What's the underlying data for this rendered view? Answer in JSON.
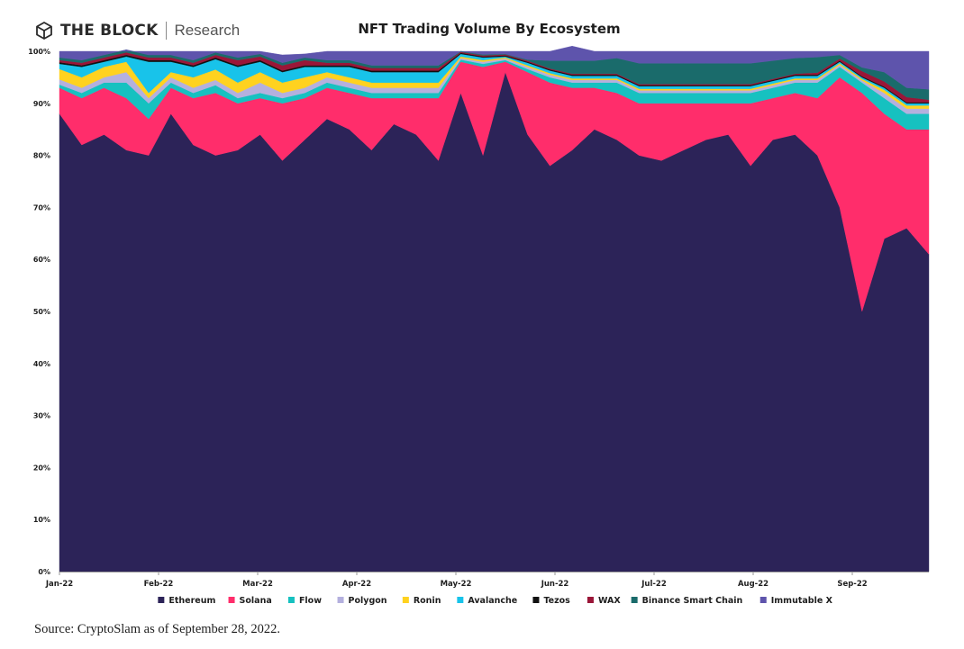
{
  "header": {
    "brand_name": "THE BLOCK",
    "brand_sub": "Research",
    "logo_icon": "cube-icon"
  },
  "source_note": "Source: CryptoSlam as of September 28, 2022.",
  "chart_data": {
    "type": "area",
    "stacked": true,
    "percent": true,
    "title": "NFT Trading Volume By Ecosystem",
    "xlabel": "",
    "ylabel": "",
    "ylim": [
      0,
      100
    ],
    "yticks": [
      "0%",
      "10%",
      "20%",
      "30%",
      "40%",
      "50%",
      "60%",
      "70%",
      "80%",
      "90%",
      "100%"
    ],
    "xticks": [
      "Jan-22",
      "Feb-22",
      "Mar-22",
      "Apr-22",
      "May-22",
      "Jun-22",
      "Jul-22",
      "Aug-22",
      "Sep-22"
    ],
    "x": [
      "Jan-01",
      "Jan-08",
      "Jan-15",
      "Jan-22",
      "Jan-29",
      "Feb-05",
      "Feb-12",
      "Feb-19",
      "Feb-26",
      "Mar-05",
      "Mar-12",
      "Mar-19",
      "Mar-26",
      "Apr-02",
      "Apr-09",
      "Apr-16",
      "Apr-23",
      "Apr-30",
      "May-07",
      "May-14",
      "May-21",
      "May-28",
      "Jun-04",
      "Jun-11",
      "Jun-18",
      "Jun-25",
      "Jul-02",
      "Jul-09",
      "Jul-16",
      "Jul-23",
      "Jul-30",
      "Aug-06",
      "Aug-13",
      "Aug-20",
      "Aug-27",
      "Sep-03",
      "Sep-10",
      "Sep-17",
      "Sep-24",
      "Sep-28"
    ],
    "grid": false,
    "legend_position": "bottom",
    "series": [
      {
        "name": "Ethereum",
        "color": "#2c2358",
        "values": [
          88,
          82,
          84,
          81,
          80,
          88,
          82,
          80,
          81,
          84,
          79,
          83,
          87,
          85,
          81,
          86,
          84,
          79,
          92,
          80,
          96,
          84,
          78,
          81,
          85,
          83,
          80,
          79,
          81,
          83,
          84,
          78,
          83,
          84,
          80,
          70,
          50,
          64,
          66,
          61
        ]
      },
      {
        "name": "Solana",
        "color": "#ff2d6b",
        "values": [
          5,
          9,
          9,
          10,
          7,
          5,
          9,
          12,
          9,
          7,
          11,
          8,
          6,
          7,
          10,
          5,
          7,
          12,
          6,
          17,
          2,
          12,
          16,
          12,
          8,
          9,
          10,
          11,
          9,
          7,
          6,
          12,
          8,
          8,
          11,
          25,
          42,
          24,
          19,
          24
        ]
      },
      {
        "name": "Flow",
        "color": "#16c1c0",
        "values": [
          0.6,
          1,
          1,
          3,
          3,
          1,
          1,
          1.5,
          1,
          1,
          1,
          1,
          1,
          1,
          1,
          1,
          1,
          1,
          0.4,
          0.6,
          0.3,
          0.6,
          1,
          1,
          1,
          2,
          2,
          2,
          2,
          2,
          2,
          2,
          2,
          2,
          3,
          2,
          2,
          3,
          3,
          3
        ]
      },
      {
        "name": "Polygon",
        "color": "#b4b0de",
        "values": [
          1,
          1,
          1,
          2,
          1,
          1,
          1,
          1,
          1,
          2,
          1,
          1,
          1,
          1,
          1,
          1,
          1,
          1,
          0.3,
          0.4,
          0.3,
          0.4,
          0.5,
          0.5,
          0.5,
          0.5,
          0.5,
          0.5,
          0.5,
          0.5,
          0.5,
          0.5,
          0.5,
          0.5,
          0.5,
          0.4,
          0.4,
          1,
          1,
          1
        ]
      },
      {
        "name": "Ronin",
        "color": "#ffd21f",
        "values": [
          2,
          2,
          2,
          2,
          1,
          1,
          2,
          2,
          2,
          2,
          2,
          2,
          1,
          1,
          1,
          1,
          1,
          1,
          0.3,
          0.3,
          0.2,
          0.3,
          0.3,
          0.3,
          0.3,
          0.3,
          0.3,
          0.3,
          0.3,
          0.3,
          0.3,
          0.3,
          0.3,
          0.3,
          0.3,
          0.3,
          0.3,
          0.6,
          0.6,
          0.6
        ]
      },
      {
        "name": "Avalanche",
        "color": "#18c3ea",
        "values": [
          1,
          2,
          1,
          1,
          6,
          2,
          2,
          2,
          3,
          2,
          2,
          2,
          1,
          2,
          2,
          2,
          2,
          2,
          0.5,
          0.5,
          0.2,
          0.5,
          0.5,
          0.5,
          0.5,
          0.5,
          0.5,
          0.5,
          0.5,
          0.5,
          0.5,
          0.5,
          0.5,
          0.5,
          0.5,
          0.3,
          0.3,
          0.4,
          0.4,
          0.4
        ]
      },
      {
        "name": "Tezos",
        "color": "#111111",
        "values": [
          0.3,
          0.3,
          0.3,
          0.3,
          0.3,
          0.3,
          0.3,
          0.3,
          0.3,
          0.3,
          0.3,
          0.3,
          0.3,
          0.3,
          0.3,
          0.3,
          0.3,
          0.3,
          0.2,
          0.2,
          0.2,
          0.2,
          0.2,
          0.2,
          0.2,
          0.2,
          0.2,
          0.2,
          0.2,
          0.2,
          0.2,
          0.2,
          0.2,
          0.2,
          0.2,
          0.2,
          0.2,
          0.2,
          0.2,
          0.2
        ]
      },
      {
        "name": "WAX",
        "color": "#9a1638",
        "values": [
          0.4,
          0.5,
          0.5,
          0.5,
          0.5,
          0.5,
          0.5,
          0.5,
          1,
          0.7,
          1,
          1,
          0.5,
          0.5,
          0.5,
          0.5,
          0.5,
          0.5,
          0.2,
          0.2,
          0.2,
          0.2,
          0.2,
          0.2,
          0.2,
          0.2,
          0.2,
          0.2,
          0.2,
          0.2,
          0.2,
          0.2,
          0.2,
          0.2,
          0.4,
          0.4,
          1,
          1,
          1,
          0.5
        ]
      },
      {
        "name": "Binance Smart Chain",
        "color": "#1a6b6b",
        "values": [
          0.5,
          0.5,
          0.5,
          0.5,
          0.5,
          0.5,
          0.5,
          0.5,
          0.5,
          0.5,
          0.5,
          0.5,
          0.5,
          0.5,
          0.5,
          0.5,
          0.5,
          0.5,
          0.1,
          0.2,
          0.1,
          0.2,
          1.5,
          2.5,
          2.5,
          3,
          4,
          4,
          4,
          4,
          4,
          4,
          3.5,
          3,
          3,
          0.7,
          0.7,
          1.8,
          1.8,
          2
        ]
      },
      {
        "name": "Immutable X",
        "color": "#5e54ac",
        "values": [
          1.2,
          1.7,
          0.7,
          -0.3,
          0.7,
          0.7,
          1.7,
          0.2,
          1.2,
          0.5,
          1.5,
          0.7,
          1.7,
          1.7,
          2.7,
          2.7,
          2.7,
          2.7,
          0,
          0.6,
          0.5,
          1.6,
          1.8,
          2.8,
          1.8,
          1.3,
          2.3,
          2.3,
          2.3,
          2.3,
          2.3,
          2.3,
          1.8,
          1.3,
          1.1,
          0.7,
          3.1,
          4,
          7,
          7.3
        ]
      }
    ]
  }
}
